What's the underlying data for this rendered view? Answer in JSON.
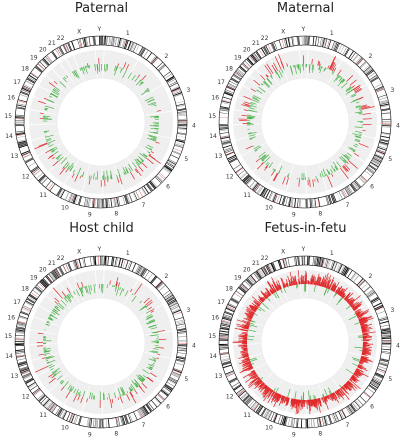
{
  "panels": [
    {
      "title": "Paternal",
      "seed": 11,
      "red_density": 0.05,
      "green_density": 0.18
    },
    {
      "title": "Maternal",
      "seed": 23,
      "red_density": 0.06,
      "green_density": 0.16
    },
    {
      "title": "Host child",
      "seed": 37,
      "red_density": 0.05,
      "green_density": 0.17
    },
    {
      "title": "Fetus-in-fetu",
      "seed": 53,
      "red_density": 0.75,
      "green_density": 0.06
    }
  ],
  "chart_data": {
    "type": "circos",
    "chromosomes": [
      "1",
      "2",
      "3",
      "4",
      "5",
      "6",
      "7",
      "8",
      "9",
      "10",
      "11",
      "12",
      "13",
      "14",
      "15",
      "16",
      "17",
      "18",
      "19",
      "20",
      "21",
      "22",
      "X",
      "Y"
    ],
    "chromosome_sizes_mb": [
      249,
      242,
      198,
      190,
      181,
      171,
      159,
      145,
      138,
      134,
      135,
      133,
      114,
      107,
      102,
      90,
      83,
      80,
      59,
      64,
      47,
      51,
      156,
      57
    ],
    "tracks": [
      "ideogram",
      "red bars (outward)",
      "green bars (inward)"
    ],
    "colors": {
      "red": "#e0292b",
      "green": "#4db34d",
      "track_bg": "#efefef",
      "ideogram_edge": "#000000"
    }
  }
}
